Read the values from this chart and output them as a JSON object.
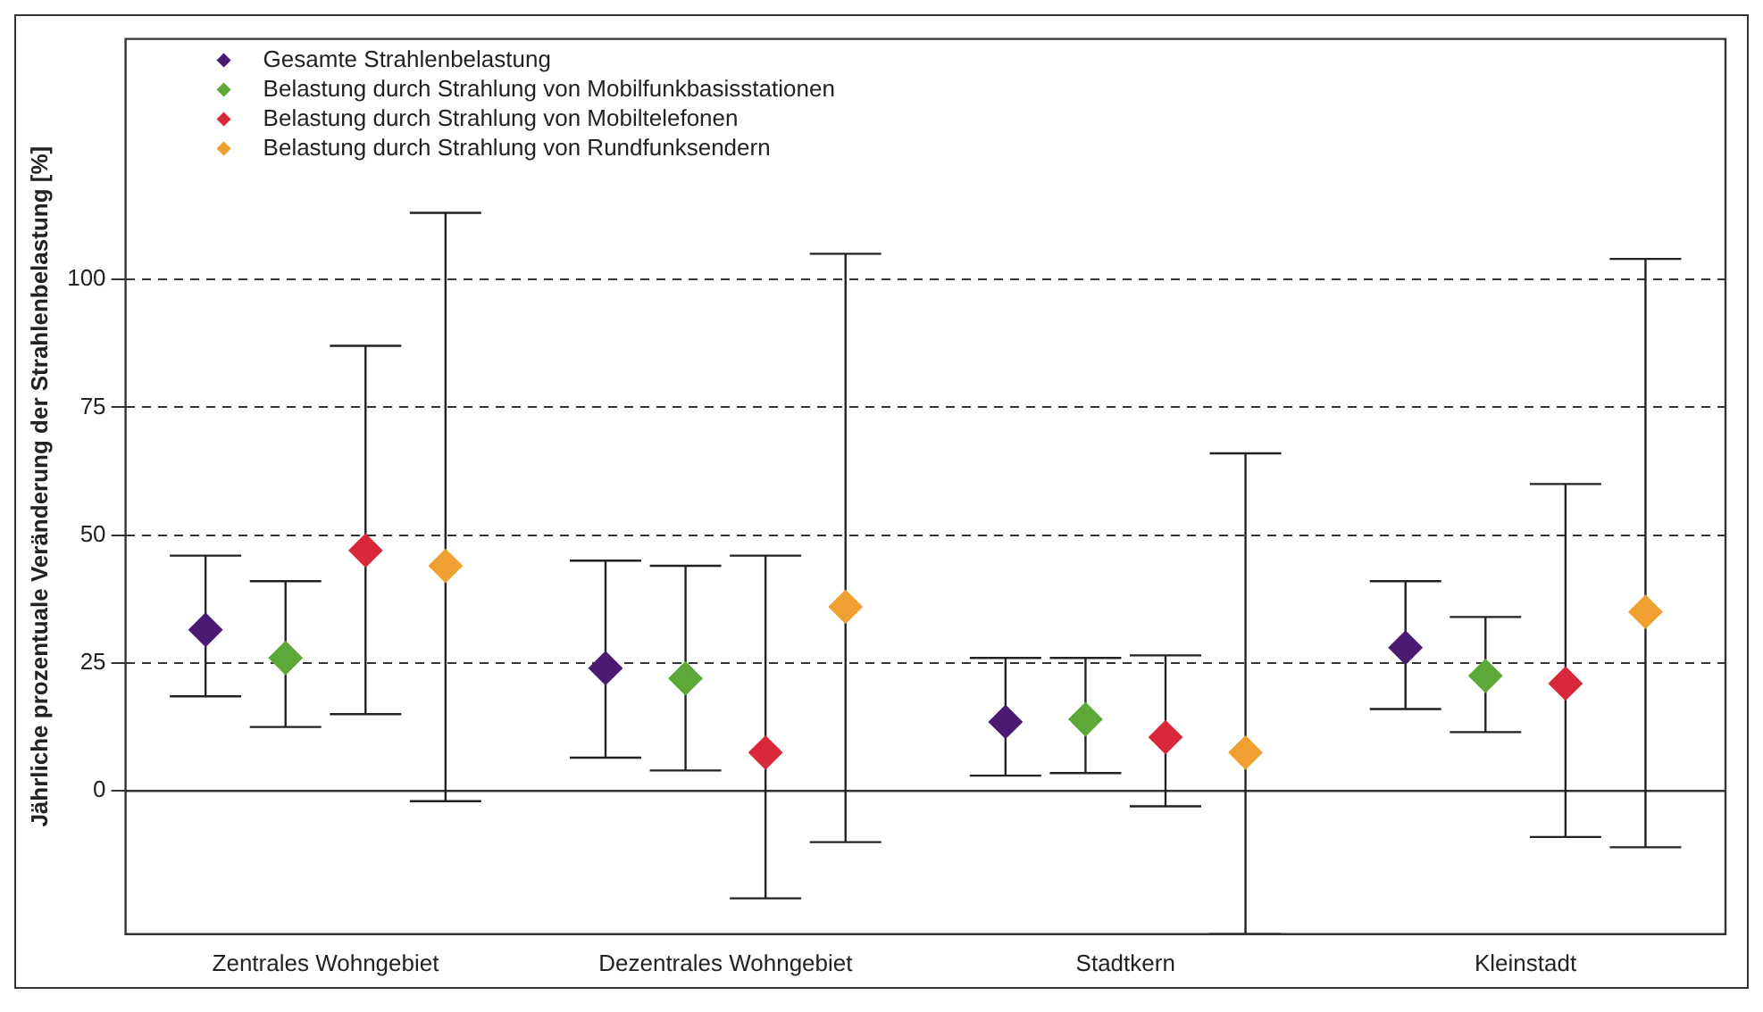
{
  "chart_data": {
    "type": "scatter",
    "ylabel": "Jährliche prozentuale Veränderung der Strahlenbelastung [%]",
    "categories": [
      "Zentrales Wohngebiet",
      "Dezentrales Wohngebiet",
      "Stadtkern",
      "Kleinstadt"
    ],
    "series": [
      {
        "name": "Gesamte Strahlenbelastung",
        "color": "#4b1a72",
        "values": [
          31.5,
          24,
          13.5,
          28
        ],
        "errors": [
          [
            18.5,
            46
          ],
          [
            6.5,
            45
          ],
          [
            3,
            26
          ],
          [
            16,
            41
          ]
        ]
      },
      {
        "name": "Belastung durch Strahlung von Mobilfunkbasisstationen",
        "color": "#5ca838",
        "values": [
          26,
          22,
          14,
          22.5
        ],
        "errors": [
          [
            12.5,
            41
          ],
          [
            4,
            44
          ],
          [
            3.5,
            26
          ],
          [
            11.5,
            34
          ]
        ]
      },
      {
        "name": "Belastung durch Strahlung von Mobiltelefonen",
        "color": "#d8283a",
        "values": [
          47,
          7.5,
          10.5,
          21
        ],
        "errors": [
          [
            15,
            87
          ],
          [
            -21,
            46
          ],
          [
            -3,
            26.5
          ],
          [
            -9,
            60
          ]
        ]
      },
      {
        "name": "Belastung durch Strahlung von Rundfunksendern",
        "color": "#f0a030",
        "values": [
          44,
          36,
          7.5,
          35
        ],
        "errors": [
          [
            -2,
            113
          ],
          [
            -10,
            105
          ],
          [
            -28,
            66
          ],
          [
            -11,
            104
          ]
        ]
      }
    ],
    "ylim": [
      -28,
      147
    ],
    "yticks": [
      0,
      25,
      50,
      75,
      100
    ],
    "grid": "y",
    "line_style": "dashed",
    "marker": "diamond",
    "legend": "top left",
    "ref_lines": [
      {
        "axis": "y",
        "value": 0,
        "line_style": "solid",
        "color": "#333333"
      }
    ]
  }
}
